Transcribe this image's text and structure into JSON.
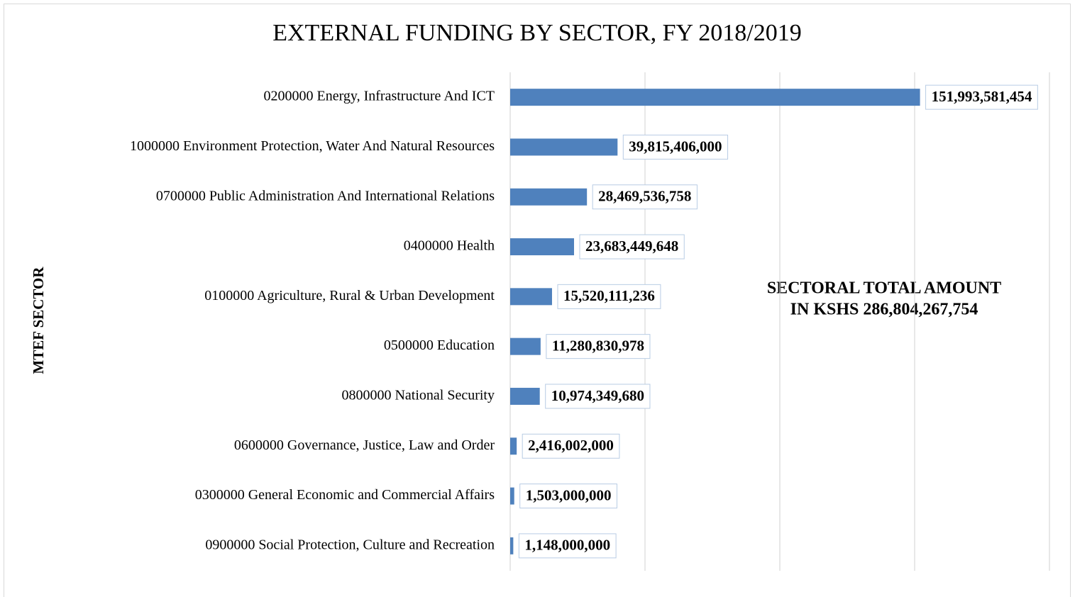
{
  "chart_data": {
    "type": "bar",
    "orientation": "horizontal",
    "title": "EXTERNAL FUNDING BY SECTOR, FY 2018/2019",
    "y_label": "MTEF SECTOR",
    "annotation": [
      "SECTORAL TOTAL AMOUNT",
      "IN KSHS 286,804,267,754"
    ],
    "categories": [
      "0200000 Energy, Infrastructure And ICT",
      "1000000 Environment Protection, Water And Natural Resources",
      "0700000 Public Administration And International Relations",
      "0400000 Health",
      "0100000 Agriculture, Rural & Urban Development",
      "0500000 Education",
      "0800000 National Security",
      "0600000 Governance, Justice, Law and Order",
      "0300000 General Economic and Commercial Affairs",
      "0900000 Social Protection, Culture and Recreation"
    ],
    "values": [
      151993581454,
      39815406000,
      28469536758,
      23683449648,
      15520111236,
      11280830978,
      10974349680,
      2416002000,
      1503000000,
      1148000000
    ],
    "value_labels": [
      "151,993,581,454",
      "39,815,406,000",
      "28,469,536,758",
      "23,683,449,648",
      "15,520,111,236",
      "11,280,830,978",
      "10,974,349,680",
      "2,416,002,000",
      "1,503,000,000",
      "1,148,000,000"
    ],
    "color": "#4f81bd",
    "xlim": [
      0,
      200000000000
    ],
    "xticks": [
      0,
      50000000000,
      100000000000,
      150000000000,
      200000000000
    ],
    "grid": true
  }
}
